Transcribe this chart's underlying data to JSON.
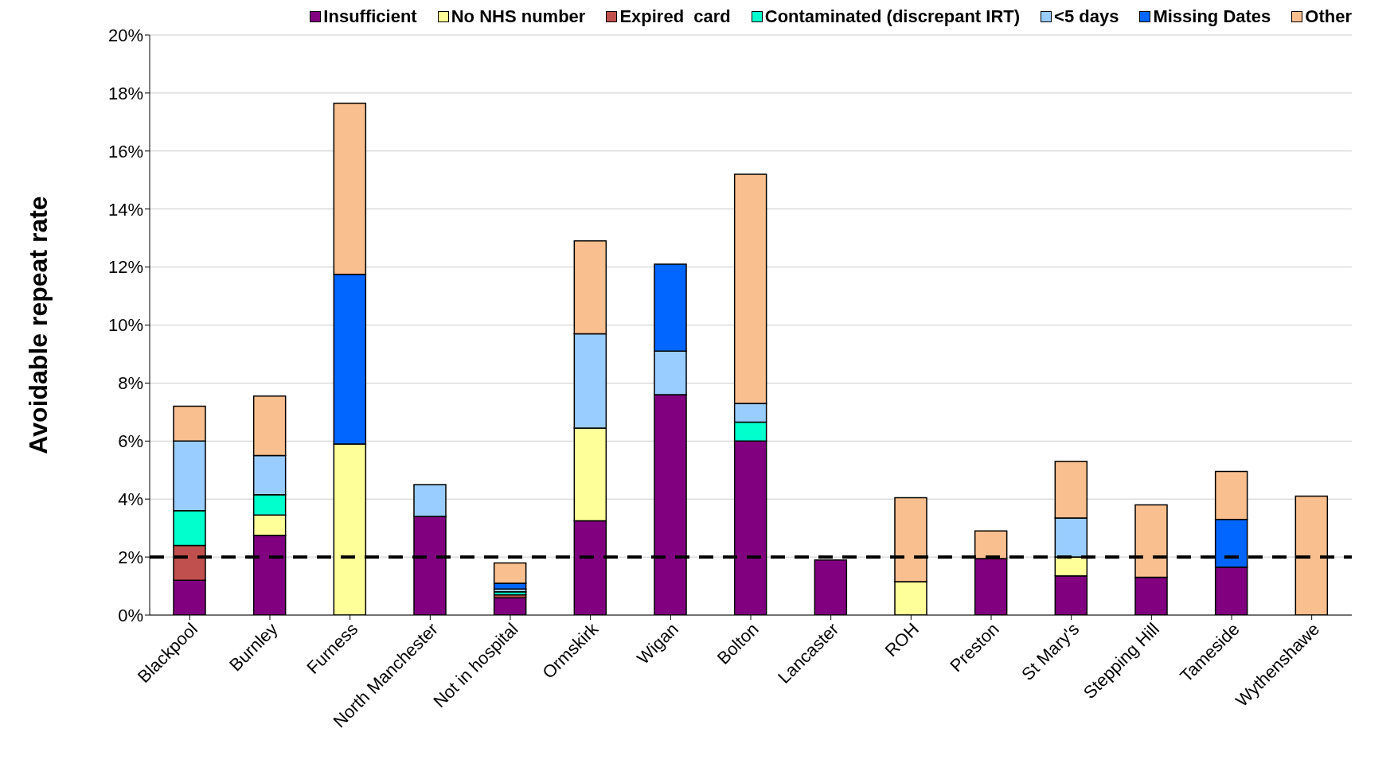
{
  "chart_data": {
    "type": "bar",
    "stacked": true,
    "ylabel": "Avoidable repeat rate",
    "categories": [
      "Blackpool",
      "Burnley",
      "Furness",
      "North Manchester",
      "Not in hospital",
      "Ormskirk",
      "Wigan",
      "Bolton",
      "Lancaster",
      "ROH",
      "Preston",
      "St Mary's",
      "Stepping Hill",
      "Tameside",
      "Wythenshawe"
    ],
    "series": [
      {
        "name": "Insufficient",
        "color": "#800080",
        "values": [
          1.2,
          2.75,
          null,
          3.4,
          0.6,
          3.25,
          7.6,
          6.0,
          1.9,
          null,
          1.95,
          1.35,
          1.3,
          1.65,
          null
        ]
      },
      {
        "name": "No NHS number",
        "color": "#ffff99",
        "values": [
          null,
          0.7,
          5.9,
          null,
          null,
          3.2,
          null,
          null,
          null,
          1.15,
          null,
          0.65,
          null,
          null,
          null
        ]
      },
      {
        "name": "Expired  card",
        "color": "#c0504d",
        "values": [
          1.2,
          null,
          null,
          null,
          0.1,
          null,
          null,
          null,
          null,
          null,
          null,
          null,
          null,
          null,
          null
        ]
      },
      {
        "name": "Contaminated (discrepant IRT)",
        "color": "#00ffcc",
        "values": [
          1.2,
          0.7,
          null,
          null,
          0.1,
          null,
          null,
          0.65,
          null,
          null,
          null,
          null,
          null,
          null,
          null
        ]
      },
      {
        "name": "<5 days",
        "color": "#99ccff",
        "values": [
          2.4,
          1.35,
          null,
          1.1,
          0.1,
          3.25,
          1.5,
          0.65,
          null,
          null,
          null,
          1.35,
          null,
          null,
          null
        ]
      },
      {
        "name": "Missing Dates",
        "color": "#0066ff",
        "values": [
          null,
          null,
          5.85,
          null,
          0.2,
          null,
          3.0,
          null,
          null,
          null,
          null,
          null,
          null,
          1.65,
          null
        ]
      },
      {
        "name": "Other",
        "color": "#f9bf8f",
        "values": [
          1.2,
          2.05,
          5.9,
          null,
          0.7,
          3.2,
          null,
          7.9,
          null,
          2.9,
          0.95,
          1.95,
          2.5,
          1.65,
          4.1
        ]
      }
    ],
    "ylim": [
      0,
      20
    ],
    "yticks": [
      {
        "value": 0,
        "label": "0%"
      },
      {
        "value": 2,
        "label": "2%"
      },
      {
        "value": 4,
        "label": "4%"
      },
      {
        "value": 6,
        "label": "6%"
      },
      {
        "value": 8,
        "label": "8%"
      },
      {
        "value": 10,
        "label": "10%"
      },
      {
        "value": 12,
        "label": "12%"
      },
      {
        "value": 14,
        "label": "14%"
      },
      {
        "value": 16,
        "label": "16%"
      },
      {
        "value": 18,
        "label": "18%"
      },
      {
        "value": 20,
        "label": "20%"
      }
    ],
    "ref_lines": [
      {
        "axis": "y",
        "value": 2,
        "color": "#000000",
        "line_style": "dashed"
      }
    ],
    "grid": "y",
    "legend": "top right"
  }
}
